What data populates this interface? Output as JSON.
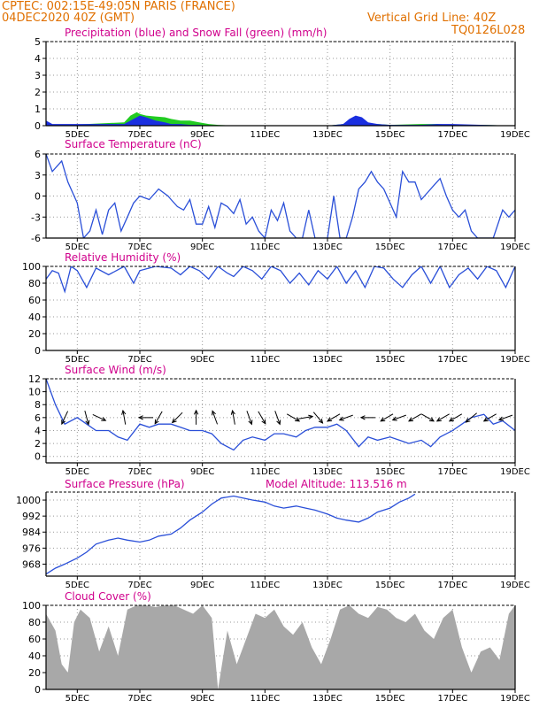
{
  "header": {
    "line1": "CPTEC:   002:15E-49:05N   PARIS (FRANCE)",
    "line2": "04DEC2020 40Z (GMT)",
    "grid_note": "Vertical Grid Line: 40Z",
    "code": "TQ0126L028"
  },
  "colors": {
    "header": "#e07000",
    "panel_title": "#d0008c",
    "line": "#2a4fd8",
    "precip": "#1a2fe0",
    "snow": "#22cc22",
    "cloud": "#a8a8a8",
    "grid": "#999999"
  },
  "x_ticks": [
    "5DEC",
    "7DEC",
    "9DEC",
    "11DEC",
    "13DEC",
    "15DEC",
    "17DEC",
    "19DEC"
  ],
  "chart_data": [
    {
      "id": "precip",
      "type": "area",
      "title": "Precipitation (blue) and Snow Fall (green) (mm/h)",
      "ylim": [
        0,
        5
      ],
      "yticks": [
        "0",
        "1",
        "2",
        "3",
        "4",
        "5"
      ],
      "grid": true,
      "x": [
        4.0,
        4.2,
        6.5,
        6.7,
        6.9,
        7.0,
        7.2,
        7.5,
        7.8,
        8.0,
        8.3,
        8.6,
        8.9,
        9.2,
        9.5,
        10.0,
        11.0,
        12.0,
        13.0,
        13.5,
        13.7,
        13.9,
        14.1,
        14.3,
        14.6,
        15.0,
        16.0,
        16.5,
        17.0,
        18.0,
        19.0
      ],
      "series": [
        {
          "name": "Precipitation",
          "values": [
            0.3,
            0.1,
            0.1,
            0.3,
            0.5,
            0.6,
            0.5,
            0.3,
            0.2,
            0.1,
            0.1,
            0.05,
            0.05,
            0.0,
            0.0,
            0.0,
            0.0,
            0.0,
            0.0,
            0.1,
            0.4,
            0.6,
            0.5,
            0.2,
            0.1,
            0.05,
            0.05,
            0.1,
            0.1,
            0.05,
            0.0
          ]
        },
        {
          "name": "Snow Fall",
          "values": [
            0.0,
            0.0,
            0.2,
            0.6,
            0.8,
            0.7,
            0.6,
            0.55,
            0.5,
            0.4,
            0.3,
            0.3,
            0.2,
            0.1,
            0.05,
            0.0,
            0.0,
            0.0,
            0.0,
            0.1,
            0.1,
            0.1,
            0.1,
            0.1,
            0.1,
            0.05,
            0.1,
            0.1,
            0.05,
            0.05,
            0.0
          ]
        }
      ]
    },
    {
      "id": "temp",
      "type": "line",
      "title": "Surface Temperature (nC)",
      "ylim": [
        -6,
        6
      ],
      "yticks": [
        "-6",
        "-3",
        "0",
        "3",
        "6"
      ],
      "grid": true,
      "x": [
        4.0,
        4.2,
        4.5,
        4.7,
        5.0,
        5.2,
        5.4,
        5.6,
        5.8,
        6.0,
        6.2,
        6.4,
        6.6,
        6.8,
        7.0,
        7.3,
        7.6,
        7.9,
        8.0,
        8.2,
        8.4,
        8.6,
        8.8,
        9.0,
        9.2,
        9.4,
        9.6,
        9.8,
        10.0,
        10.2,
        10.4,
        10.6,
        10.8,
        11.0,
        11.2,
        11.4,
        11.6,
        11.8,
        12.0,
        12.2,
        12.4,
        12.6,
        12.8,
        13.0,
        13.2,
        13.4,
        13.6,
        13.8,
        14.0,
        14.2,
        14.4,
        14.6,
        14.8,
        15.0,
        15.2,
        15.4,
        15.6,
        15.8,
        16.0,
        16.2,
        16.4,
        16.6,
        16.8,
        17.0,
        17.2,
        17.4,
        17.6,
        17.8,
        18.0,
        18.3,
        18.6,
        18.8,
        19.0
      ],
      "series": [
        {
          "name": "",
          "values": [
            6,
            3.5,
            5,
            2,
            -1,
            -6,
            -5,
            -2,
            -5.5,
            -2,
            -1,
            -5,
            -3,
            -1,
            0,
            -0.5,
            1,
            0,
            -0.5,
            -1.5,
            -2,
            -0.5,
            -4,
            -4,
            -1.5,
            -4.5,
            -1,
            -1.5,
            -2.5,
            -0.5,
            -4,
            -3,
            -5,
            -6,
            -2,
            -3.5,
            -1,
            -5,
            -6,
            -6,
            -2,
            -6,
            -6,
            -6,
            0,
            -6,
            -6,
            -3,
            1,
            2,
            3.5,
            2,
            1,
            -1,
            -3,
            3.5,
            2,
            2,
            -0.5,
            0.5,
            1.5,
            2.5,
            0,
            -2,
            -3,
            -2,
            -5,
            -6,
            -6,
            -6,
            -2,
            -3,
            -2
          ]
        }
      ]
    },
    {
      "id": "rh",
      "type": "line",
      "title": "Relative Humidity (%)",
      "ylim": [
        0,
        100
      ],
      "yticks": [
        "0",
        "20",
        "40",
        "60",
        "80",
        "100"
      ],
      "grid": true,
      "x": [
        4.0,
        4.2,
        4.4,
        4.6,
        4.8,
        5.0,
        5.3,
        5.6,
        6.0,
        6.5,
        6.8,
        7.0,
        7.5,
        8.0,
        8.3,
        8.6,
        8.9,
        9.2,
        9.5,
        9.8,
        10.0,
        10.3,
        10.6,
        10.9,
        11.2,
        11.5,
        11.8,
        12.1,
        12.4,
        12.7,
        13.0,
        13.3,
        13.6,
        13.9,
        14.2,
        14.5,
        14.8,
        15.1,
        15.4,
        15.7,
        16.0,
        16.3,
        16.6,
        16.9,
        17.2,
        17.5,
        17.8,
        18.1,
        18.4,
        18.7,
        19.0
      ],
      "series": [
        {
          "name": "",
          "values": [
            85,
            95,
            92,
            70,
            100,
            95,
            75,
            98,
            90,
            100,
            80,
            95,
            100,
            98,
            90,
            100,
            95,
            85,
            100,
            92,
            88,
            100,
            95,
            85,
            100,
            95,
            80,
            92,
            78,
            95,
            85,
            100,
            80,
            95,
            75,
            100,
            98,
            85,
            75,
            90,
            100,
            80,
            100,
            75,
            90,
            98,
            85,
            100,
            95,
            75,
            100
          ]
        }
      ]
    },
    {
      "id": "wind",
      "type": "line",
      "title": "Surface Wind (m/s)",
      "ylim": [
        -1,
        12
      ],
      "yticks": [
        "0",
        "2",
        "4",
        "6",
        "8",
        "10",
        "12"
      ],
      "grid": true,
      "x": [
        4.0,
        4.3,
        4.6,
        5.0,
        5.3,
        5.6,
        6.0,
        6.3,
        6.6,
        7.0,
        7.3,
        7.6,
        8.0,
        8.3,
        8.6,
        9.0,
        9.3,
        9.6,
        10.0,
        10.3,
        10.6,
        11.0,
        11.3,
        11.6,
        12.0,
        12.3,
        12.6,
        13.0,
        13.3,
        13.6,
        14.0,
        14.3,
        14.6,
        15.0,
        15.3,
        15.6,
        16.0,
        16.3,
        16.6,
        17.0,
        17.3,
        17.6,
        18.0,
        18.3,
        18.6,
        19.0
      ],
      "series": [
        {
          "name": "",
          "values": [
            12,
            8,
            5,
            6,
            5,
            4,
            4,
            3,
            2.5,
            5,
            4.5,
            5,
            5,
            4.5,
            4,
            4,
            3.5,
            2,
            1,
            2.5,
            3,
            2.5,
            3.5,
            3.5,
            3,
            4,
            4.5,
            4.5,
            5,
            4,
            1.5,
            3,
            2.5,
            3,
            2.5,
            2,
            2.5,
            1.5,
            3,
            4,
            5,
            6,
            6.5,
            5,
            5.5,
            4
          ]
        }
      ],
      "arrows": [
        {
          "x": 4.6,
          "dir": 205
        },
        {
          "x": 5.3,
          "dir": 165
        },
        {
          "x": 5.7,
          "dir": 115
        },
        {
          "x": 6.5,
          "dir": 350
        },
        {
          "x": 7.2,
          "dir": 270
        },
        {
          "x": 7.6,
          "dir": 210
        },
        {
          "x": 8.2,
          "dir": 225
        },
        {
          "x": 8.8,
          "dir": 0
        },
        {
          "x": 9.4,
          "dir": 340
        },
        {
          "x": 10.0,
          "dir": 350
        },
        {
          "x": 10.5,
          "dir": 160
        },
        {
          "x": 10.9,
          "dir": 150
        },
        {
          "x": 11.4,
          "dir": 160
        },
        {
          "x": 11.9,
          "dir": 120
        },
        {
          "x": 12.3,
          "dir": 80
        },
        {
          "x": 12.7,
          "dir": 140
        },
        {
          "x": 13.2,
          "dir": 240
        },
        {
          "x": 13.6,
          "dir": 250
        },
        {
          "x": 14.3,
          "dir": 270
        },
        {
          "x": 14.9,
          "dir": 240
        },
        {
          "x": 15.3,
          "dir": 250
        },
        {
          "x": 15.8,
          "dir": 240
        },
        {
          "x": 16.2,
          "dir": 120
        },
        {
          "x": 16.7,
          "dir": 240
        },
        {
          "x": 17.1,
          "dir": 240
        },
        {
          "x": 17.6,
          "dir": 230
        },
        {
          "x": 18.2,
          "dir": 240
        },
        {
          "x": 18.7,
          "dir": 250
        }
      ]
    },
    {
      "id": "pressure",
      "type": "line",
      "title": "Surface Pressure (hPa)",
      "annotation": "Model Altitude: 113.516  m",
      "ylim": [
        962,
        1004
      ],
      "yticks": [
        "968",
        "976",
        "984",
        "992",
        "1000"
      ],
      "grid": true,
      "x": [
        4.0,
        4.3,
        4.6,
        5.0,
        5.3,
        5.6,
        6.0,
        6.3,
        6.6,
        7.0,
        7.3,
        7.6,
        8.0,
        8.3,
        8.6,
        9.0,
        9.3,
        9.6,
        10.0,
        10.3,
        10.6,
        11.0,
        11.3,
        11.6,
        12.0,
        12.3,
        12.6,
        13.0,
        13.3,
        13.6,
        14.0,
        14.3,
        14.6,
        15.0,
        15.3,
        15.6,
        15.8
      ],
      "series": [
        {
          "name": "",
          "values": [
            963,
            966,
            968,
            971,
            974,
            978,
            980,
            981,
            980,
            979,
            980,
            982,
            983,
            986,
            990,
            994,
            998,
            1001,
            1002,
            1001,
            1000,
            999,
            997,
            996,
            997,
            996,
            995,
            993,
            991,
            990,
            989,
            991,
            994,
            996,
            999,
            1001,
            1003
          ]
        }
      ]
    },
    {
      "id": "cloud",
      "type": "area",
      "title": "Cloud Cover (%)",
      "ylim": [
        0,
        100
      ],
      "yticks": [
        "0",
        "20",
        "40",
        "60",
        "80",
        "100"
      ],
      "grid": true,
      "x": [
        4.0,
        4.3,
        4.5,
        4.7,
        4.9,
        5.1,
        5.4,
        5.7,
        6.0,
        6.3,
        6.6,
        6.9,
        7.2,
        7.5,
        7.8,
        8.1,
        8.4,
        8.7,
        9.0,
        9.3,
        9.5,
        9.8,
        10.1,
        10.4,
        10.7,
        11.0,
        11.3,
        11.6,
        11.9,
        12.2,
        12.5,
        12.8,
        13.1,
        13.4,
        13.7,
        14.0,
        14.3,
        14.6,
        14.9,
        15.2,
        15.5,
        15.8,
        16.1,
        16.4,
        16.7,
        17.0,
        17.3,
        17.6,
        17.9,
        18.2,
        18.5,
        18.8,
        19.0
      ],
      "series": [
        {
          "name": "Cloud Cover",
          "values": [
            90,
            70,
            30,
            20,
            80,
            95,
            85,
            45,
            75,
            40,
            95,
            100,
            100,
            98,
            100,
            100,
            95,
            90,
            100,
            85,
            0,
            70,
            30,
            60,
            90,
            85,
            95,
            75,
            65,
            80,
            50,
            30,
            60,
            95,
            100,
            90,
            85,
            98,
            95,
            85,
            80,
            90,
            70,
            60,
            85,
            95,
            50,
            20,
            45,
            50,
            35,
            90,
            100
          ]
        }
      ]
    }
  ]
}
